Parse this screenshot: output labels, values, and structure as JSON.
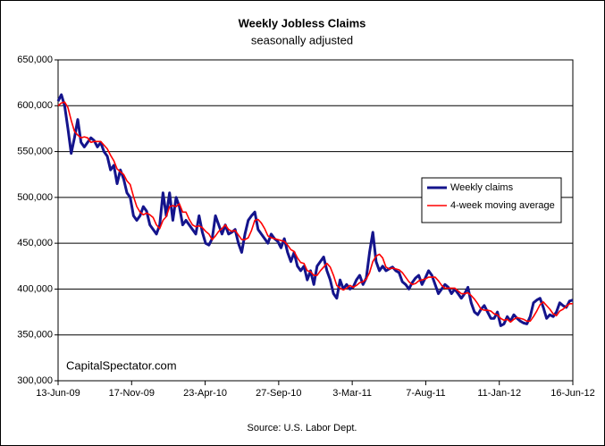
{
  "chart_data": {
    "type": "line",
    "title": "Weekly Jobless Claims",
    "subtitle": "seasonally adjusted",
    "annotation": "CapitalSpectator.com",
    "source": "Source: U.S. Labor Dept.",
    "legend": "right",
    "grid": true,
    "x": [
      "2009-06-13",
      "2009-06-20",
      "2009-06-27",
      "2009-07-04",
      "2009-07-11",
      "2009-07-18",
      "2009-07-25",
      "2009-08-01",
      "2009-08-08",
      "2009-08-15",
      "2009-08-22",
      "2009-08-29",
      "2009-09-05",
      "2009-09-12",
      "2009-09-19",
      "2009-09-26",
      "2009-10-03",
      "2009-10-10",
      "2009-10-17",
      "2009-10-24",
      "2009-10-31",
      "2009-11-07",
      "2009-11-14",
      "2009-11-21",
      "2009-11-28",
      "2009-12-05",
      "2009-12-12",
      "2009-12-19",
      "2009-12-26",
      "2010-01-02",
      "2010-01-09",
      "2010-01-16",
      "2010-01-23",
      "2010-01-30",
      "2010-02-06",
      "2010-02-13",
      "2010-02-20",
      "2010-02-27",
      "2010-03-06",
      "2010-03-13",
      "2010-03-20",
      "2010-03-27",
      "2010-04-03",
      "2010-04-10",
      "2010-04-17",
      "2010-04-24",
      "2010-05-01",
      "2010-05-08",
      "2010-05-15",
      "2010-05-22",
      "2010-05-29",
      "2010-06-05",
      "2010-06-12",
      "2010-06-19",
      "2010-06-26",
      "2010-07-03",
      "2010-07-10",
      "2010-07-17",
      "2010-07-24",
      "2010-07-31",
      "2010-08-07",
      "2010-08-14",
      "2010-08-21",
      "2010-08-28",
      "2010-09-04",
      "2010-09-11",
      "2010-09-18",
      "2010-09-25",
      "2010-10-02",
      "2010-10-09",
      "2010-10-16",
      "2010-10-23",
      "2010-10-30",
      "2010-11-06",
      "2010-11-13",
      "2010-11-20",
      "2010-11-27",
      "2010-12-04",
      "2010-12-11",
      "2010-12-18",
      "2010-12-25",
      "2011-01-01",
      "2011-01-08",
      "2011-01-15",
      "2011-01-22",
      "2011-01-29",
      "2011-02-05",
      "2011-02-12",
      "2011-02-19",
      "2011-02-26",
      "2011-03-05",
      "2011-03-12",
      "2011-03-19",
      "2011-03-26",
      "2011-04-02",
      "2011-04-09",
      "2011-04-16",
      "2011-04-23",
      "2011-04-30",
      "2011-05-07",
      "2011-05-14",
      "2011-05-21",
      "2011-05-28",
      "2011-06-04",
      "2011-06-11",
      "2011-06-18",
      "2011-06-25",
      "2011-07-02",
      "2011-07-09",
      "2011-07-16",
      "2011-07-23",
      "2011-07-30",
      "2011-08-06",
      "2011-08-13",
      "2011-08-20",
      "2011-08-27",
      "2011-09-03",
      "2011-09-10",
      "2011-09-17",
      "2011-09-24",
      "2011-10-01",
      "2011-10-08",
      "2011-10-15",
      "2011-10-22",
      "2011-10-29",
      "2011-11-05",
      "2011-11-12",
      "2011-11-19",
      "2011-11-26",
      "2011-12-03",
      "2011-12-10",
      "2011-12-17",
      "2011-12-24",
      "2011-12-31",
      "2012-01-07",
      "2012-01-14",
      "2012-01-21",
      "2012-01-28",
      "2012-02-04",
      "2012-02-11",
      "2012-02-18",
      "2012-02-25",
      "2012-03-03",
      "2012-03-10",
      "2012-03-17",
      "2012-03-24",
      "2012-03-31",
      "2012-04-07",
      "2012-04-14",
      "2012-04-21",
      "2012-04-28",
      "2012-05-05",
      "2012-05-12",
      "2012-05-19",
      "2012-05-26",
      "2012-06-02",
      "2012-06-09",
      "2012-06-16"
    ],
    "series": [
      {
        "name": "Weekly claims",
        "color": "#14148c",
        "values": [
          605000,
          612000,
          600000,
          575000,
          548000,
          565000,
          585000,
          560000,
          555000,
          560000,
          565000,
          562000,
          555000,
          560000,
          550000,
          545000,
          530000,
          535000,
          515000,
          530000,
          520000,
          505000,
          500000,
          480000,
          475000,
          480000,
          490000,
          485000,
          470000,
          465000,
          460000,
          470000,
          505000,
          480000,
          505000,
          475000,
          500000,
          490000,
          470000,
          475000,
          470000,
          465000,
          460000,
          480000,
          462000,
          450000,
          448000,
          455000,
          480000,
          470000,
          460000,
          470000,
          460000,
          462000,
          465000,
          450000,
          440000,
          460000,
          475000,
          480000,
          484000,
          465000,
          460000,
          455000,
          450000,
          460000,
          455000,
          452000,
          445000,
          455000,
          440000,
          430000,
          440000,
          425000,
          420000,
          425000,
          410000,
          420000,
          405000,
          425000,
          430000,
          435000,
          420000,
          410000,
          395000,
          390000,
          410000,
          400000,
          405000,
          400000,
          402000,
          410000,
          415000,
          405000,
          412000,
          440000,
          462000,
          430000,
          420000,
          425000,
          420000,
          422000,
          424000,
          420000,
          418000,
          408000,
          405000,
          400000,
          407000,
          412000,
          415000,
          405000,
          412000,
          420000,
          415000,
          405000,
          395000,
          400000,
          405000,
          402000,
          395000,
          400000,
          395000,
          390000,
          395000,
          402000,
          385000,
          375000,
          372000,
          378000,
          382000,
          375000,
          368000,
          368000,
          375000,
          360000,
          362000,
          370000,
          365000,
          372000,
          368000,
          365000,
          363000,
          362000,
          370000,
          385000,
          388000,
          390000,
          380000,
          368000,
          372000,
          370000,
          375000,
          385000,
          382000,
          380000,
          387000,
          388000
        ]
      },
      {
        "name": "4-week moving average",
        "color": "#ff0000",
        "values": [
          600000,
          603000,
          604000,
          598000,
          584000,
          572000,
          568000,
          565000,
          566000,
          565000,
          560000,
          561000,
          561000,
          561000,
          557000,
          553000,
          546000,
          540000,
          531000,
          528000,
          525000,
          518000,
          514000,
          501000,
          490000,
          484000,
          481000,
          483000,
          481000,
          478000,
          470000,
          466000,
          475000,
          479000,
          490000,
          491000,
          490000,
          493000,
          484000,
          484000,
          476000,
          470000,
          468000,
          469000,
          467000,
          463000,
          460000,
          454000,
          458000,
          463000,
          466000,
          470000,
          465000,
          463000,
          464000,
          459000,
          454000,
          454000,
          456000,
          464000,
          475000,
          476000,
          472000,
          466000,
          458000,
          456000,
          455000,
          454000,
          453000,
          452000,
          448000,
          443000,
          441000,
          434000,
          429000,
          428000,
          420000,
          419000,
          415000,
          415000,
          420000,
          424000,
          428000,
          424000,
          415000,
          404000,
          401000,
          399000,
          401000,
          404000,
          402000,
          404000,
          407000,
          408000,
          411000,
          418000,
          430000,
          436000,
          438000,
          434000,
          424000,
          422000,
          423000,
          422000,
          421000,
          418000,
          413000,
          408000,
          405000,
          406000,
          409000,
          410000,
          411000,
          413000,
          413000,
          413000,
          409000,
          404000,
          401000,
          401000,
          401000,
          401000,
          398000,
          395000,
          395000,
          396000,
          393000,
          389000,
          384000,
          378000,
          377000,
          377000,
          376000,
          373000,
          372000,
          368000,
          366000,
          367000,
          364000,
          367000,
          369000,
          368000,
          367000,
          365000,
          365000,
          370000,
          376000,
          383000,
          386000,
          382000,
          378000,
          373000,
          371000,
          376000,
          378000,
          381000,
          384000,
          384000
        ]
      }
    ],
    "xlim": [
      "2009-06-13",
      "2012-06-16"
    ],
    "xticks": [
      {
        "value": "2009-06-13",
        "label": "13-Jun-09"
      },
      {
        "value": "2009-11-17",
        "label": "17-Nov-09"
      },
      {
        "value": "2010-04-23",
        "label": "23-Apr-10"
      },
      {
        "value": "2010-09-27",
        "label": "27-Sep-10"
      },
      {
        "value": "2011-03-03",
        "label": "3-Mar-11"
      },
      {
        "value": "2011-08-07",
        "label": "7-Aug-11"
      },
      {
        "value": "2012-01-11",
        "label": "11-Jan-12"
      },
      {
        "value": "2012-06-16",
        "label": "16-Jun-12"
      }
    ],
    "ylim": [
      300000,
      650000
    ],
    "yticks": [
      {
        "value": 300000,
        "label": "300,000"
      },
      {
        "value": 350000,
        "label": "350,000"
      },
      {
        "value": 400000,
        "label": "400,000"
      },
      {
        "value": 450000,
        "label": "450,000"
      },
      {
        "value": 500000,
        "label": "500,000"
      },
      {
        "value": 550000,
        "label": "550,000"
      },
      {
        "value": 600000,
        "label": "600,000"
      },
      {
        "value": 650000,
        "label": "650,000"
      }
    ]
  }
}
